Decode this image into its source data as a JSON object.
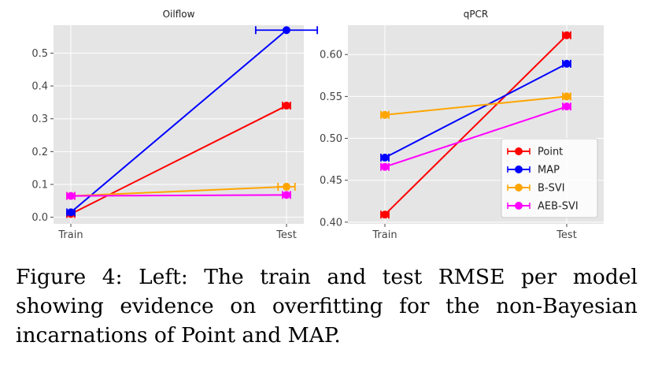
{
  "chart_data": [
    {
      "type": "line",
      "title": "Oilflow",
      "categories": [
        "Train",
        "Test"
      ],
      "ylim": [
        -0.02,
        0.585
      ],
      "yticks": [
        0.0,
        0.1,
        0.2,
        0.3,
        0.4,
        0.5
      ],
      "ytick_labels": [
        "0.0",
        "0.1",
        "0.2",
        "0.3",
        "0.4",
        "0.5"
      ],
      "grid": true,
      "series": [
        {
          "name": "Point",
          "color": "#ff0000",
          "values": [
            0.01,
            0.34
          ],
          "errors": [
            0.005,
            0.015
          ]
        },
        {
          "name": "MAP",
          "color": "#0000ff",
          "values": [
            0.015,
            0.57
          ],
          "errors": [
            0.005,
            0.2
          ]
        },
        {
          "name": "B-SVI",
          "color": "#ffa500",
          "values": [
            0.065,
            0.093
          ],
          "errors": [
            0.005,
            0.055
          ]
        },
        {
          "name": "AEB-SVI",
          "color": "#ff00ff",
          "values": [
            0.065,
            0.068
          ],
          "errors": [
            0.01,
            0.01
          ]
        }
      ]
    },
    {
      "type": "line",
      "title": "qPCR",
      "categories": [
        "Train",
        "Test"
      ],
      "ylim": [
        0.398,
        0.635
      ],
      "yticks": [
        0.4,
        0.45,
        0.5,
        0.55,
        0.6
      ],
      "ytick_labels": [
        "0.40",
        "0.45",
        "0.50",
        "0.55",
        "0.60"
      ],
      "grid": true,
      "legend": "lower-right",
      "series": [
        {
          "name": "Point",
          "color": "#ff0000",
          "values": [
            0.409,
            0.623
          ],
          "errors": [
            0.015,
            0.014
          ]
        },
        {
          "name": "MAP",
          "color": "#0000ff",
          "values": [
            0.477,
            0.589
          ],
          "errors": [
            0.002,
            0.008
          ]
        },
        {
          "name": "B-SVI",
          "color": "#ffa500",
          "values": [
            0.528,
            0.55
          ],
          "errors": [
            0.01,
            0.01
          ]
        },
        {
          "name": "AEB-SVI",
          "color": "#ff00ff",
          "values": [
            0.466,
            0.538
          ],
          "errors": [
            0.002,
            0.002
          ]
        }
      ]
    }
  ],
  "caption": "Figure 4: Left: The train and test RMSE per model showing evidence on overfitting for the non-Bayesian incarnations of Point and MAP."
}
